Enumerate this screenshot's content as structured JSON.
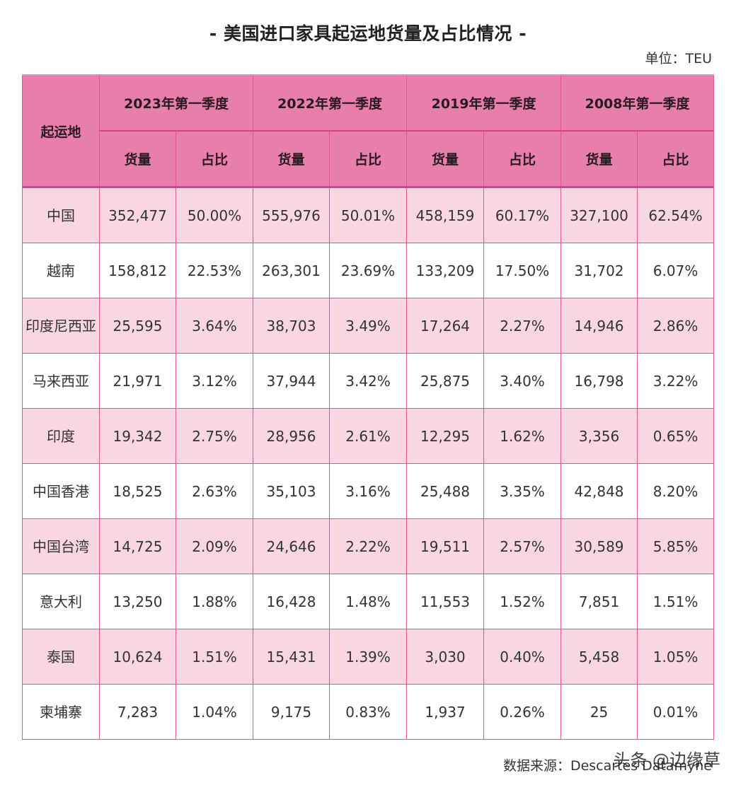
{
  "header": {
    "title": "- 美国进口家具起运地货量及占比情况 -",
    "unit": "单位：TEU"
  },
  "table": {
    "origin_header": "起运地",
    "periods": [
      "2023年第一季度",
      "2022年第一季度",
      "2019年第一季度",
      "2008年第一季度"
    ],
    "sub_headers": [
      "货量",
      "占比"
    ],
    "rows": [
      {
        "origin": "中国",
        "cells": [
          "352,477",
          "50.00%",
          "555,976",
          "50.01%",
          "458,159",
          "60.17%",
          "327,100",
          "62.54%"
        ]
      },
      {
        "origin": "越南",
        "cells": [
          "158,812",
          "22.53%",
          "263,301",
          "23.69%",
          "133,209",
          "17.50%",
          "31,702",
          "6.07%"
        ]
      },
      {
        "origin": "印度尼西亚",
        "cells": [
          "25,595",
          "3.64%",
          "38,703",
          "3.49%",
          "17,264",
          "2.27%",
          "14,946",
          "2.86%"
        ]
      },
      {
        "origin": "马来西亚",
        "cells": [
          "21,971",
          "3.12%",
          "37,944",
          "3.42%",
          "25,875",
          "3.40%",
          "16,798",
          "3.22%"
        ]
      },
      {
        "origin": "印度",
        "cells": [
          "19,342",
          "2.75%",
          "28,956",
          "2.61%",
          "12,295",
          "1.62%",
          "3,356",
          "0.65%"
        ]
      },
      {
        "origin": "中国香港",
        "cells": [
          "18,525",
          "2.63%",
          "35,103",
          "3.16%",
          "25,488",
          "3.35%",
          "42,848",
          "8.20%"
        ]
      },
      {
        "origin": "中国台湾",
        "cells": [
          "14,725",
          "2.09%",
          "24,646",
          "2.22%",
          "19,511",
          "2.57%",
          "30,589",
          "5.85%"
        ]
      },
      {
        "origin": "意大利",
        "cells": [
          "13,250",
          "1.88%",
          "16,428",
          "1.48%",
          "11,553",
          "1.52%",
          "7,851",
          "1.51%"
        ]
      },
      {
        "origin": "泰国",
        "cells": [
          "10,624",
          "1.51%",
          "15,431",
          "1.39%",
          "3,030",
          "0.40%",
          "5,458",
          "1.05%"
        ]
      },
      {
        "origin": "柬埔寨",
        "cells": [
          "7,283",
          "1.04%",
          "9,175",
          "0.83%",
          "1,937",
          "0.26%",
          "25",
          "0.01%"
        ]
      }
    ]
  },
  "footer": {
    "source": "数据来源：Descartes Datamyne",
    "watermark": "头条 @边缘草"
  },
  "colors": {
    "header_bg": "#e77eab",
    "alt_row_bg": "#f8d7e3",
    "border": "#e0559a"
  },
  "chart_data": {
    "type": "table",
    "title": "美国进口家具起运地货量及占比情况",
    "unit": "TEU",
    "source": "Descartes Datamyne",
    "columns": [
      "起运地",
      "2023年第一季度 货量",
      "2023年第一季度 占比",
      "2022年第一季度 货量",
      "2022年第一季度 占比",
      "2019年第一季度 货量",
      "2019年第一季度 占比",
      "2008年第一季度 货量",
      "2008年第一季度 占比"
    ],
    "categories": [
      "中国",
      "越南",
      "印度尼西亚",
      "马来西亚",
      "印度",
      "中国香港",
      "中国台湾",
      "意大利",
      "泰国",
      "柬埔寨"
    ],
    "series": [
      {
        "name": "2023年第一季度 货量",
        "values": [
          352477,
          158812,
          25595,
          21971,
          19342,
          18525,
          14725,
          13250,
          10624,
          7283
        ]
      },
      {
        "name": "2023年第一季度 占比",
        "values": [
          50.0,
          22.53,
          3.64,
          3.12,
          2.75,
          2.63,
          2.09,
          1.88,
          1.51,
          1.04
        ]
      },
      {
        "name": "2022年第一季度 货量",
        "values": [
          555976,
          263301,
          38703,
          37944,
          28956,
          35103,
          24646,
          16428,
          15431,
          9175
        ]
      },
      {
        "name": "2022年第一季度 占比",
        "values": [
          50.01,
          23.69,
          3.49,
          3.42,
          2.61,
          3.16,
          2.22,
          1.48,
          1.39,
          0.83
        ]
      },
      {
        "name": "2019年第一季度 货量",
        "values": [
          458159,
          133209,
          17264,
          25875,
          12295,
          25488,
          19511,
          11553,
          3030,
          1937
        ]
      },
      {
        "name": "2019年第一季度 占比",
        "values": [
          60.17,
          17.5,
          2.27,
          3.4,
          1.62,
          3.35,
          2.57,
          1.52,
          0.4,
          0.26
        ]
      },
      {
        "name": "2008年第一季度 货量",
        "values": [
          327100,
          31702,
          14946,
          16798,
          3356,
          42848,
          30589,
          7851,
          5458,
          25
        ]
      },
      {
        "name": "2008年第一季度 占比",
        "values": [
          62.54,
          6.07,
          2.86,
          3.22,
          0.65,
          8.2,
          5.85,
          1.51,
          1.05,
          0.01
        ]
      }
    ]
  }
}
